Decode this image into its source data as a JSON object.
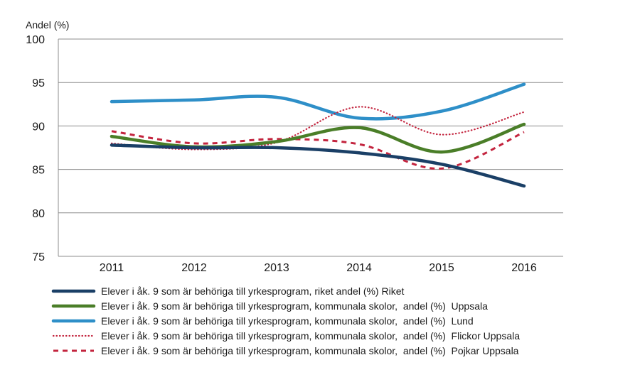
{
  "chart_data": {
    "type": "line",
    "title": "",
    "xlabel": "",
    "ylabel": "Andel (%)",
    "ylim": [
      75,
      100
    ],
    "yticks": [
      75,
      80,
      85,
      90,
      95,
      100
    ],
    "categories": [
      "2011",
      "2012",
      "2013",
      "2014",
      "2015",
      "2016"
    ],
    "grid": true,
    "legend_position": "bottom",
    "series": [
      {
        "name": "Elever i åk. 9 som är behöriga till yrkesprogram, riket andel (%) Riket",
        "values": [
          87.8,
          87.5,
          87.5,
          86.9,
          85.6,
          83.1
        ],
        "color": "#1a3f66",
        "style": "solid"
      },
      {
        "name": "Elever i åk. 9 som är behöriga till yrkesprogram, kommunala skolor,  andel (%)  Uppsala",
        "values": [
          88.8,
          87.6,
          88.2,
          89.8,
          87.0,
          90.2
        ],
        "color": "#4a7e28",
        "style": "solid"
      },
      {
        "name": "Elever i åk. 9 som är behöriga till yrkesprogram, kommunala skolor,  andel (%)  Lund",
        "values": [
          92.8,
          93.0,
          93.3,
          90.9,
          91.7,
          94.8
        ],
        "color": "#2e8fc8",
        "style": "solid"
      },
      {
        "name": "Elever i åk. 9 som är behöriga till yrkesprogram, kommunala skolor,  andel (%)  Flickor Uppsala",
        "values": [
          88.0,
          87.3,
          88.1,
          92.2,
          89.0,
          91.6
        ],
        "color": "#c3243e",
        "style": "dotted"
      },
      {
        "name": "Elever i åk. 9 som är behöriga till yrkesprogram, kommunala skolor,  andel (%)  Pojkar Uppsala",
        "values": [
          89.4,
          88.0,
          88.5,
          87.9,
          85.1,
          89.3
        ],
        "color": "#c3243e",
        "style": "dashed"
      }
    ]
  }
}
